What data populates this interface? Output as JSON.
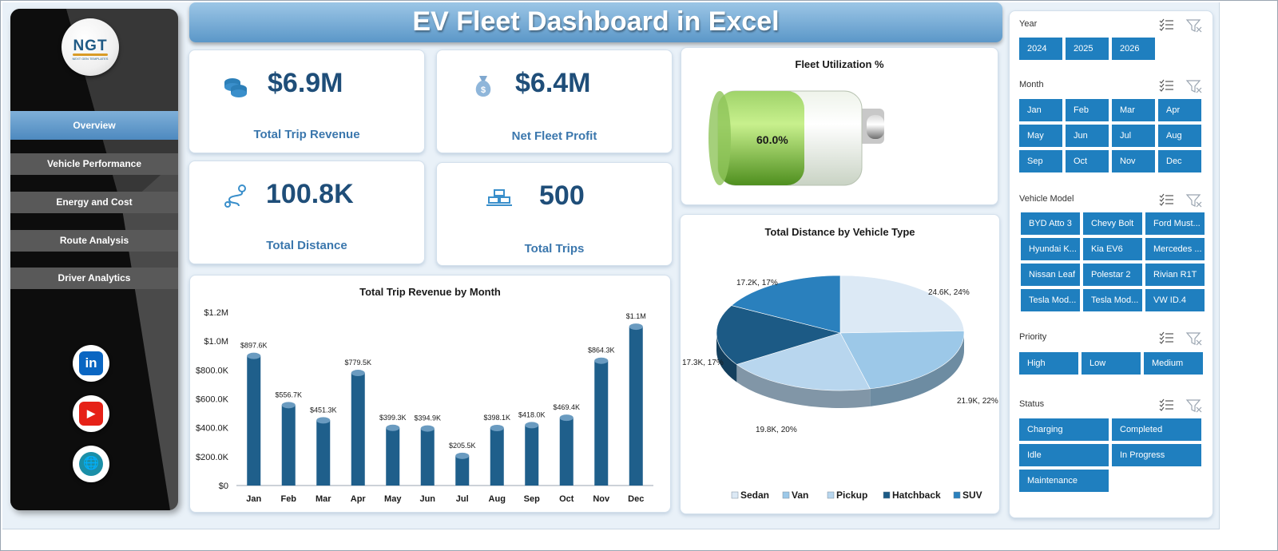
{
  "header": {
    "title": "EV Fleet Dashboard in Excel"
  },
  "logo": {
    "text": "NGT",
    "subtext": "NEXT GEN TEMPLATES"
  },
  "sidebar": {
    "items": [
      {
        "label": "Overview"
      },
      {
        "label": "Vehicle Performance"
      },
      {
        "label": "Energy and Cost"
      },
      {
        "label": "Route Analysis"
      },
      {
        "label": "Driver Analytics"
      }
    ],
    "social": {
      "linkedin": "in",
      "youtube": "▶",
      "web": "🌐"
    }
  },
  "kpis": {
    "revenue": {
      "value": "$6.9M",
      "label": "Total Trip Revenue"
    },
    "profit": {
      "value": "$6.4M",
      "label": "Net Fleet Profit"
    },
    "distance": {
      "value": "100.8K",
      "label": "Total Distance"
    },
    "trips": {
      "value": "500",
      "label": "Total Trips"
    }
  },
  "utilization": {
    "title": "Fleet Utilization %",
    "value_label": "60.0%",
    "value": 0.6
  },
  "chart_data": [
    {
      "type": "bar",
      "title": "Total Trip Revenue by Month",
      "categories": [
        "Jan",
        "Feb",
        "Mar",
        "Apr",
        "May",
        "Jun",
        "Jul",
        "Aug",
        "Sep",
        "Oct",
        "Nov",
        "Dec"
      ],
      "values": [
        897.6,
        556.7,
        451.3,
        779.5,
        399.3,
        394.9,
        205.5,
        398.1,
        418.0,
        469.4,
        864.3,
        1100
      ],
      "data_labels": [
        "$897.6K",
        "$556.7K",
        "$451.3K",
        "$779.5K",
        "$399.3K",
        "$394.9K",
        "$205.5K",
        "$398.1K",
        "$418.0K",
        "$469.4K",
        "$864.3K",
        "$1.1M"
      ],
      "y_ticks": [
        "$0",
        "$200.0K",
        "$400.0K",
        "$600.0K",
        "$800.0K",
        "$1.0M",
        "$1.2M"
      ],
      "ylim": [
        0,
        1200
      ],
      "color": "#1f5f8b"
    },
    {
      "type": "pie",
      "title": "Total Distance by Vehicle Type",
      "legend_placement": "bottom",
      "categories": [
        "Sedan",
        "Van",
        "Pickup",
        "Hatchback",
        "SUV"
      ],
      "values": [
        24.6,
        21.9,
        19.8,
        17.3,
        17.2
      ],
      "data_labels": [
        "24.6K, 24%",
        "21.9K, 22%",
        "19.8K, 20%",
        "17.3K, 17%",
        "17.2K, 17%"
      ],
      "colors": [
        "#dce9f5",
        "#9cc8e8",
        "#b8d6ee",
        "#1c5a85",
        "#2a80bd"
      ]
    }
  ],
  "slicers": {
    "year": {
      "title": "Year",
      "options": [
        "2024",
        "2025",
        "2026"
      ]
    },
    "month": {
      "title": "Month",
      "options": [
        "Jan",
        "Feb",
        "Mar",
        "Apr",
        "May",
        "Jun",
        "Jul",
        "Aug",
        "Sep",
        "Oct",
        "Nov",
        "Dec"
      ]
    },
    "model": {
      "title": "Vehicle Model",
      "options": [
        "BYD Atto 3",
        "Chevy Bolt",
        "Ford Must...",
        "Hyundai K...",
        "Kia EV6",
        "Mercedes ...",
        "Nissan Leaf",
        "Polestar 2",
        "Rivian R1T",
        "Tesla Mod...",
        "Tesla Mod...",
        "VW ID.4"
      ]
    },
    "priority": {
      "title": "Priority",
      "options": [
        "High",
        "Low",
        "Medium"
      ]
    },
    "status": {
      "title": "Status",
      "options": [
        "Charging",
        "Completed",
        "Idle",
        "In Progress",
        "Maintenance"
      ]
    }
  }
}
